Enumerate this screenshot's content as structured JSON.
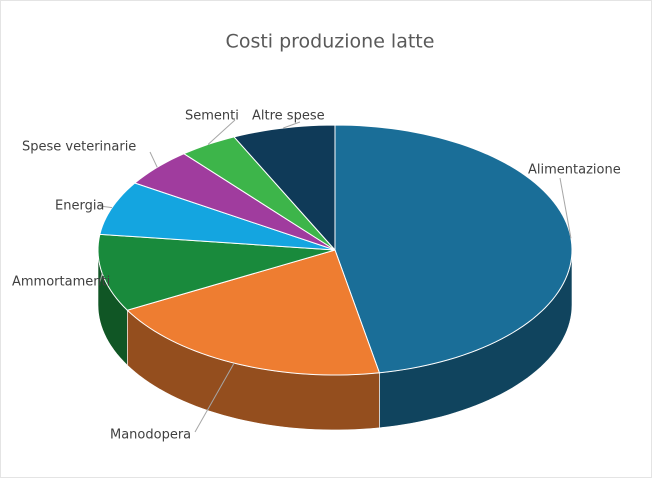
{
  "chart_data": {
    "type": "pie3d",
    "title": "Costi produzione latte",
    "categories": [
      "Alimentazione",
      "Manodopera",
      "Ammortamenti",
      "Energia",
      "Spese veterinarie",
      "Sementi",
      "Altre spese"
    ],
    "values": [
      47,
      20,
      10,
      7,
      5,
      4,
      7
    ],
    "colors": [
      "#1a6e98",
      "#ee7d31",
      "#198a3c",
      "#14a5e0",
      "#a03c9e",
      "#3db54a",
      "#0f3a58"
    ]
  }
}
